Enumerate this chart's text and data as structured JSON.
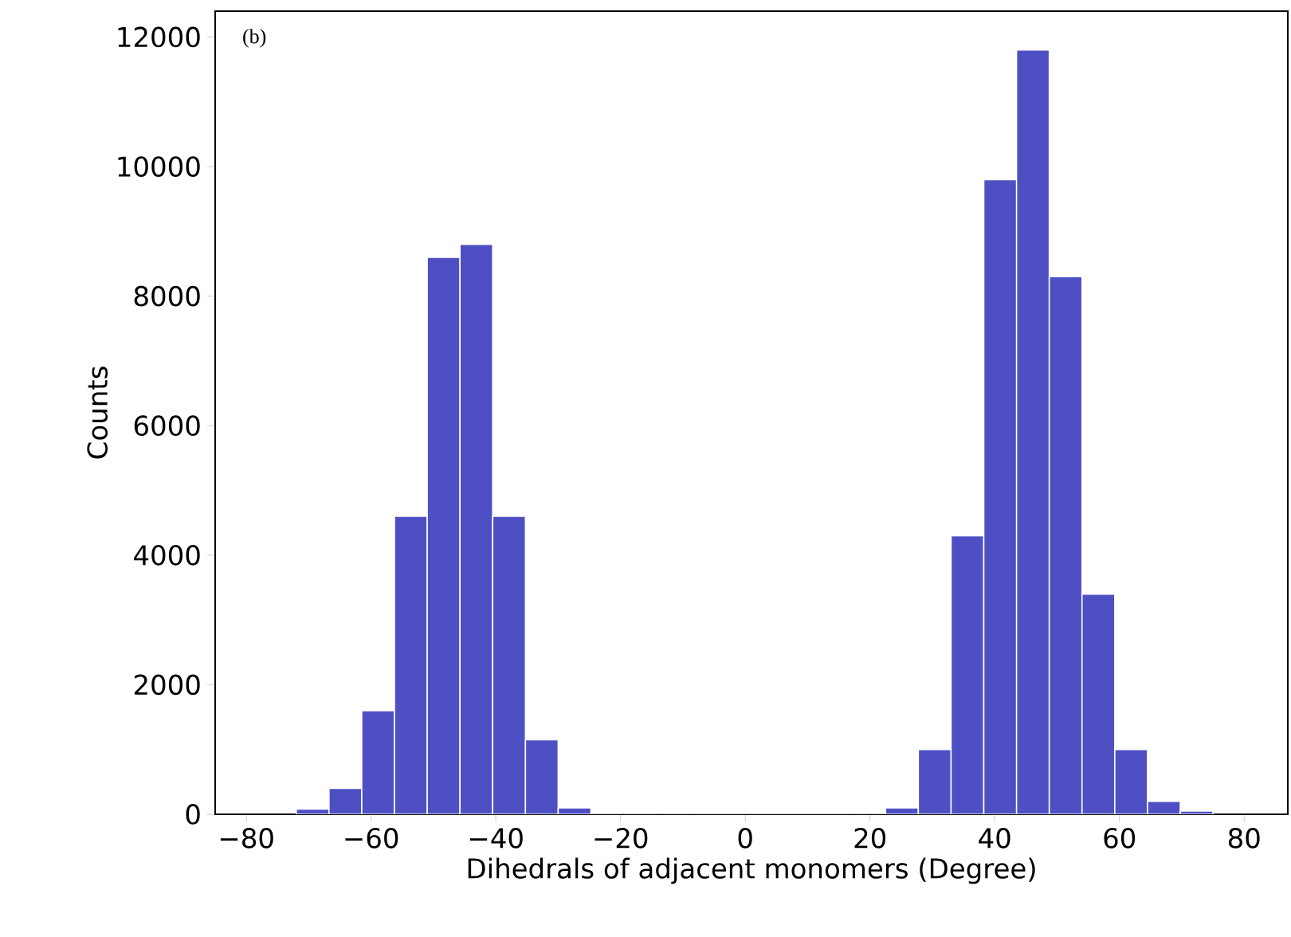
{
  "chart_data": {
    "type": "histogram",
    "xlabel": "Dihedrals of adjacent monomers (Degree)",
    "ylabel": "Counts",
    "annotations": [
      "(b)"
    ],
    "bins": [
      -72,
      -66.75,
      -61.5,
      -56.25,
      -51,
      -45.75,
      -40.5,
      -35.25,
      -30,
      -24.75,
      -19.5,
      -14.25,
      -9,
      -3.75,
      1.5,
      6.75,
      12,
      17.25,
      22.5,
      27.75,
      33,
      38.25,
      43.5,
      48.75,
      54,
      59.25,
      64.5,
      69.75,
      75
    ],
    "values": [
      80,
      400,
      1600,
      4600,
      8600,
      8800,
      4600,
      1150,
      100,
      0,
      0,
      0,
      0,
      0,
      0,
      0,
      0,
      0,
      100,
      1000,
      4300,
      9800,
      11800,
      8300,
      3400,
      1000,
      200,
      50
    ],
    "color": "#4f4fc4",
    "xlim": [
      -85,
      87
    ],
    "ylim": [
      0,
      12400
    ],
    "xticks": [
      {
        "value": -80,
        "label": "−80"
      },
      {
        "value": -60,
        "label": "−60"
      },
      {
        "value": -40,
        "label": "−40"
      },
      {
        "value": -20,
        "label": "−20"
      },
      0,
      20,
      40,
      60,
      80
    ],
    "yticks": [
      0,
      2000,
      4000,
      6000,
      8000,
      10000,
      12000
    ]
  }
}
